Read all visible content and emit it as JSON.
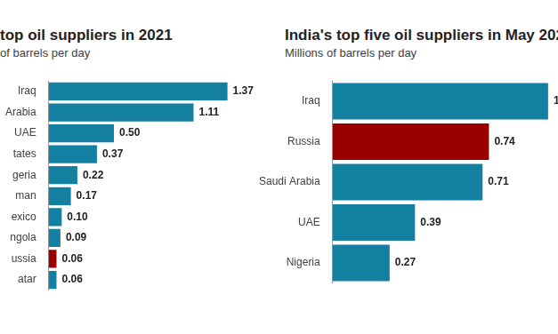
{
  "chart_data": [
    {
      "type": "bar",
      "orientation": "horizontal",
      "title": "top oil suppliers in 2021",
      "subtitle": "of barrels per day",
      "categories": [
        "Iraq",
        "Arabia",
        "UAE",
        "tates",
        "geria",
        "man",
        "exico",
        "ngola",
        "ussia",
        "atar"
      ],
      "values": [
        1.37,
        1.11,
        0.5,
        0.37,
        0.22,
        0.17,
        0.1,
        0.09,
        0.06,
        0.06
      ],
      "value_labels": [
        "1.37",
        "1.11",
        "0.50",
        "0.37",
        "0.22",
        "0.17",
        "0.10",
        "0.09",
        "0.06",
        "0.06"
      ],
      "colors": [
        "#1380a1",
        "#1380a1",
        "#1380a1",
        "#1380a1",
        "#1380a1",
        "#1380a1",
        "#1380a1",
        "#1380a1",
        "#990000",
        "#1380a1"
      ],
      "xlim": [
        0,
        1.4
      ],
      "grid": false,
      "data_labels": true,
      "tick_labels": "y"
    },
    {
      "type": "bar",
      "orientation": "horizontal",
      "title": "India's top five oil suppliers in May 202",
      "subtitle": "Millions of barrels per day",
      "categories": [
        "Iraq",
        "Russia",
        "Saudi Arabia",
        "UAE",
        "Nigeria"
      ],
      "values": [
        1.02,
        0.74,
        0.71,
        0.39,
        0.27
      ],
      "value_labels": [
        "1",
        "0.74",
        "0.71",
        "0.39",
        "0.27"
      ],
      "colors": [
        "#1380a1",
        "#990000",
        "#1380a1",
        "#1380a1",
        "#1380a1"
      ],
      "xlim": [
        0,
        1.05
      ],
      "grid": false,
      "data_labels": true,
      "tick_labels": "y"
    }
  ]
}
